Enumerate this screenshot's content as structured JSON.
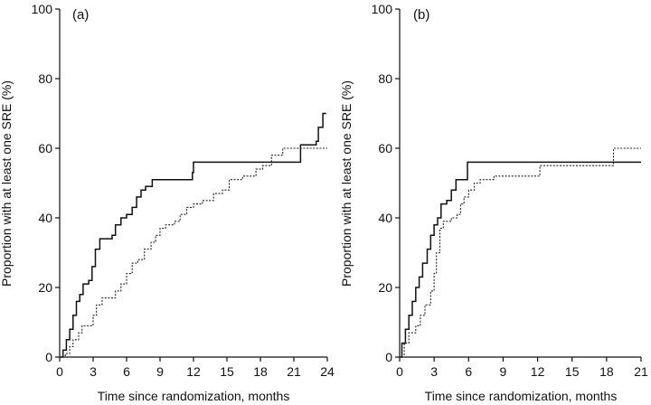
{
  "chart_data": [
    {
      "type": "line",
      "title": "(a)",
      "xlabel": "Time since randomization, months",
      "ylabel": "Proportion with at least one SRE (%)",
      "xlim": [
        0,
        24
      ],
      "ylim": [
        0,
        100
      ],
      "xticks": [
        0,
        3,
        6,
        9,
        12,
        15,
        18,
        21,
        24
      ],
      "yticks": [
        0,
        20,
        40,
        60,
        80,
        100
      ],
      "grid": false,
      "step": true,
      "series": [
        {
          "style": "solid",
          "points": [
            [
              0,
              0
            ],
            [
              0.3,
              2
            ],
            [
              0.6,
              5
            ],
            [
              0.9,
              8
            ],
            [
              1.2,
              12
            ],
            [
              1.5,
              16
            ],
            [
              1.8,
              18
            ],
            [
              2.1,
              21
            ],
            [
              2.6,
              22
            ],
            [
              2.9,
              26
            ],
            [
              3.2,
              31
            ],
            [
              3.6,
              34
            ],
            [
              4.4,
              34
            ],
            [
              4.7,
              35
            ],
            [
              5.0,
              38
            ],
            [
              5.5,
              40
            ],
            [
              6.0,
              41
            ],
            [
              6.5,
              43
            ],
            [
              6.9,
              46
            ],
            [
              7.3,
              48
            ],
            [
              7.7,
              49
            ],
            [
              8.3,
              51
            ],
            [
              10.5,
              51
            ],
            [
              11.9,
              53
            ],
            [
              12.0,
              56
            ],
            [
              18.3,
              56
            ],
            [
              19.0,
              56
            ],
            [
              21.2,
              56
            ],
            [
              21.6,
              61
            ],
            [
              23.0,
              62
            ],
            [
              23.2,
              66
            ],
            [
              23.6,
              70
            ],
            [
              23.9,
              70
            ]
          ]
        },
        {
          "style": "dotted",
          "points": [
            [
              0,
              0
            ],
            [
              0.5,
              1
            ],
            [
              0.9,
              3
            ],
            [
              1.2,
              5
            ],
            [
              1.7,
              7
            ],
            [
              2.0,
              9
            ],
            [
              2.7,
              9
            ],
            [
              3.0,
              12
            ],
            [
              3.3,
              15
            ],
            [
              3.8,
              17
            ],
            [
              4.5,
              17
            ],
            [
              5.0,
              19
            ],
            [
              5.5,
              21
            ],
            [
              6.0,
              24
            ],
            [
              6.5,
              27
            ],
            [
              7.0,
              28
            ],
            [
              7.6,
              31
            ],
            [
              8.2,
              33
            ],
            [
              8.6,
              35
            ],
            [
              9.0,
              37
            ],
            [
              9.5,
              38
            ],
            [
              10.3,
              39
            ],
            [
              10.8,
              41
            ],
            [
              11.4,
              43
            ],
            [
              12.0,
              44
            ],
            [
              12.8,
              45
            ],
            [
              13.8,
              47
            ],
            [
              14.6,
              48
            ],
            [
              15.2,
              51
            ],
            [
              16.4,
              52
            ],
            [
              17.6,
              54
            ],
            [
              18.2,
              55
            ],
            [
              19.0,
              58
            ],
            [
              20.0,
              60
            ],
            [
              20.6,
              60
            ],
            [
              24.0,
              60
            ]
          ]
        }
      ]
    },
    {
      "type": "line",
      "title": "(b)",
      "xlabel": "Time since randomization, months",
      "ylabel": "Proportion with at least one SRE (%)",
      "xlim": [
        0,
        21
      ],
      "ylim": [
        0,
        100
      ],
      "xticks": [
        0,
        3,
        6,
        9,
        12,
        15,
        18,
        21
      ],
      "yticks": [
        0,
        20,
        40,
        60,
        80,
        100
      ],
      "grid": false,
      "step": true,
      "series": [
        {
          "style": "solid",
          "points": [
            [
              0,
              0
            ],
            [
              0.2,
              4
            ],
            [
              0.5,
              8
            ],
            [
              0.8,
              12
            ],
            [
              1.1,
              16
            ],
            [
              1.4,
              20
            ],
            [
              1.7,
              23
            ],
            [
              2.0,
              27
            ],
            [
              2.4,
              31
            ],
            [
              2.7,
              35
            ],
            [
              3.0,
              38
            ],
            [
              3.3,
              40
            ],
            [
              3.6,
              44
            ],
            [
              4.1,
              45
            ],
            [
              4.5,
              48
            ],
            [
              4.9,
              51
            ],
            [
              5.7,
              51
            ],
            [
              5.9,
              56
            ],
            [
              21.0,
              56
            ]
          ]
        },
        {
          "style": "dotted",
          "points": [
            [
              0,
              0
            ],
            [
              0.4,
              4
            ],
            [
              0.8,
              7
            ],
            [
              1.4,
              9
            ],
            [
              1.8,
              12
            ],
            [
              2.2,
              15
            ],
            [
              2.7,
              19
            ],
            [
              3.0,
              24
            ],
            [
              3.2,
              30
            ],
            [
              3.5,
              37
            ],
            [
              3.8,
              39
            ],
            [
              4.5,
              40
            ],
            [
              5.0,
              41
            ],
            [
              5.3,
              44
            ],
            [
              5.6,
              46
            ],
            [
              6.0,
              48
            ],
            [
              6.5,
              50
            ],
            [
              7.0,
              51
            ],
            [
              8.2,
              52
            ],
            [
              12.0,
              52
            ],
            [
              12.2,
              55
            ],
            [
              18.3,
              55
            ],
            [
              18.6,
              60
            ],
            [
              21.0,
              60
            ]
          ]
        }
      ]
    }
  ]
}
